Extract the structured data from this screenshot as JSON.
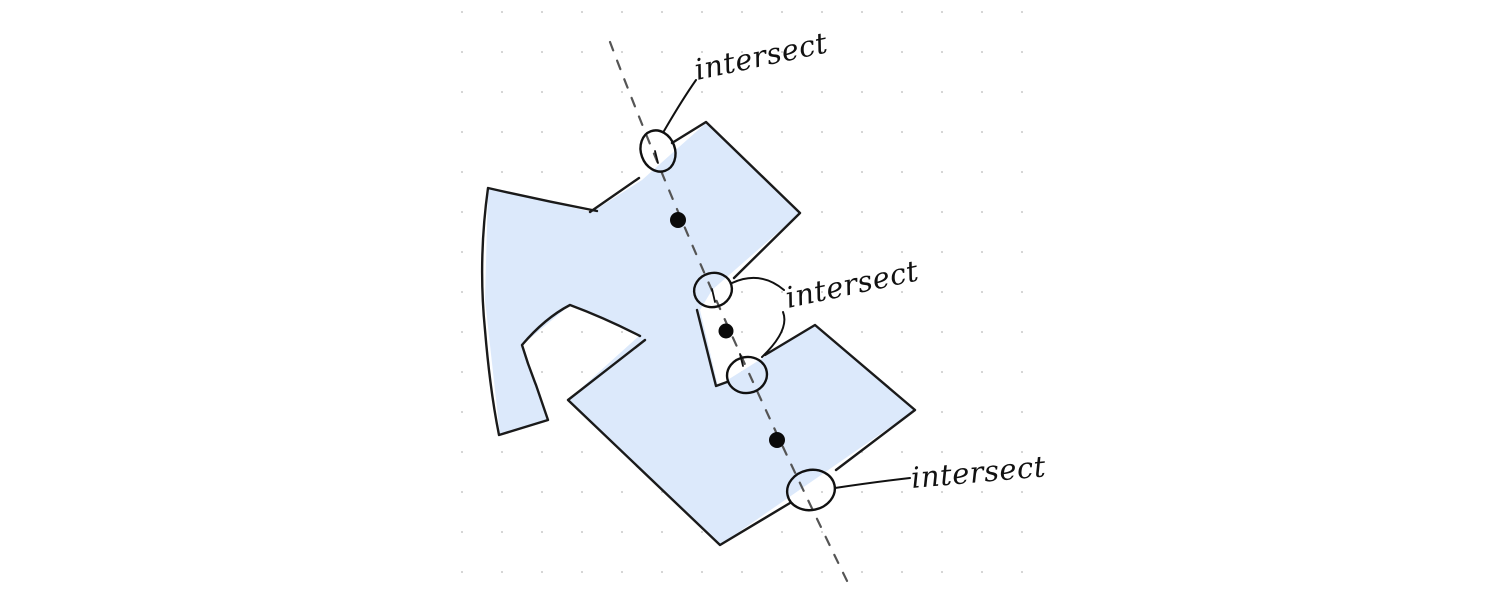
{
  "diagram": {
    "colors": {
      "background": "#ffffff",
      "grid_dot": "#c9c9c9",
      "shape_fill": "#dce9fb",
      "outline": "#1a1a1a",
      "dashed_line": "#555555",
      "marker": "#111111"
    },
    "annotations": [
      {
        "label": "intersect"
      },
      {
        "label": "intersect"
      },
      {
        "label": "intersect"
      }
    ]
  }
}
